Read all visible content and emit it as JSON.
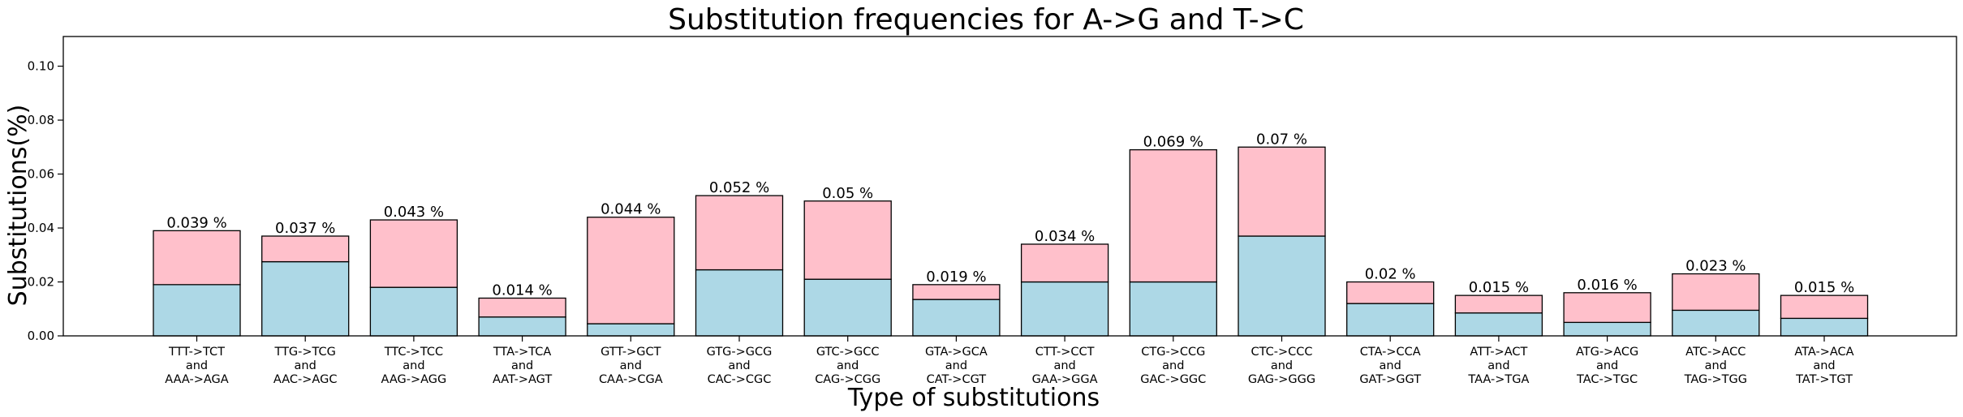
{
  "chart_data": {
    "type": "bar",
    "stacked": true,
    "title": "Substitution frequencies for A->G and T->C",
    "xlabel": "Type of substitutions",
    "ylabel": "Substitutions(%)",
    "ylim": [
      0,
      0.111
    ],
    "yticks": [
      "0.00",
      "0.02",
      "0.04",
      "0.06",
      "0.08",
      "0.10"
    ],
    "ytick_values": [
      0,
      0.02,
      0.04,
      0.06,
      0.08,
      0.1
    ],
    "grid": false,
    "categories": [
      [
        "TTT->TCT",
        "and",
        "AAA->AGA"
      ],
      [
        "TTG->TCG",
        "and",
        "AAC->AGC"
      ],
      [
        "TTC->TCC",
        "and",
        "AAG->AGG"
      ],
      [
        "TTA->TCA",
        "and",
        "AAT->AGT"
      ],
      [
        "GTT->GCT",
        "and",
        "CAA->CGA"
      ],
      [
        "GTG->GCG",
        "and",
        "CAC->CGC"
      ],
      [
        "GTC->GCC",
        "and",
        "CAG->CGG"
      ],
      [
        "GTA->GCA",
        "and",
        "CAT->CGT"
      ],
      [
        "CTT->CCT",
        "and",
        "GAA->GGA"
      ],
      [
        "CTG->CCG",
        "and",
        "GAC->GGC"
      ],
      [
        "CTC->CCC",
        "and",
        "GAG->GGG"
      ],
      [
        "CTA->CCA",
        "and",
        "GAT->GGT"
      ],
      [
        "ATT->ACT",
        "and",
        "TAA->TGA"
      ],
      [
        "ATG->ACG",
        "and",
        "TAC->TGC"
      ],
      [
        "ATC->ACC",
        "and",
        "TAG->TGG"
      ],
      [
        "ATA->ACA",
        "and",
        "TAT->TGT"
      ]
    ],
    "series": [
      {
        "color": "#add8e6",
        "values": [
          0.019,
          0.0275,
          0.018,
          0.007,
          0.0045,
          0.0245,
          0.021,
          0.0135,
          0.02,
          0.02,
          0.037,
          0.012,
          0.0085,
          0.005,
          0.0095,
          0.0065
        ]
      },
      {
        "color": "#ffc0cb",
        "values": [
          0.02,
          0.0095,
          0.025,
          0.007,
          0.0395,
          0.0275,
          0.029,
          0.0055,
          0.014,
          0.049,
          0.033,
          0.008,
          0.0065,
          0.011,
          0.0135,
          0.0085
        ]
      }
    ],
    "totals": [
      0.039,
      0.037,
      0.043,
      0.014,
      0.044,
      0.052,
      0.05,
      0.019,
      0.034,
      0.069,
      0.07,
      0.02,
      0.015,
      0.016,
      0.023,
      0.015
    ],
    "total_labels": [
      "0.039 %",
      "0.037 %",
      "0.043 %",
      "0.014 %",
      "0.044 %",
      "0.052 %",
      "0.05 %",
      "0.019 %",
      "0.034 %",
      "0.069 %",
      "0.07 %",
      "0.02 %",
      "0.015 %",
      "0.016 %",
      "0.023 %",
      "0.015 %"
    ]
  }
}
